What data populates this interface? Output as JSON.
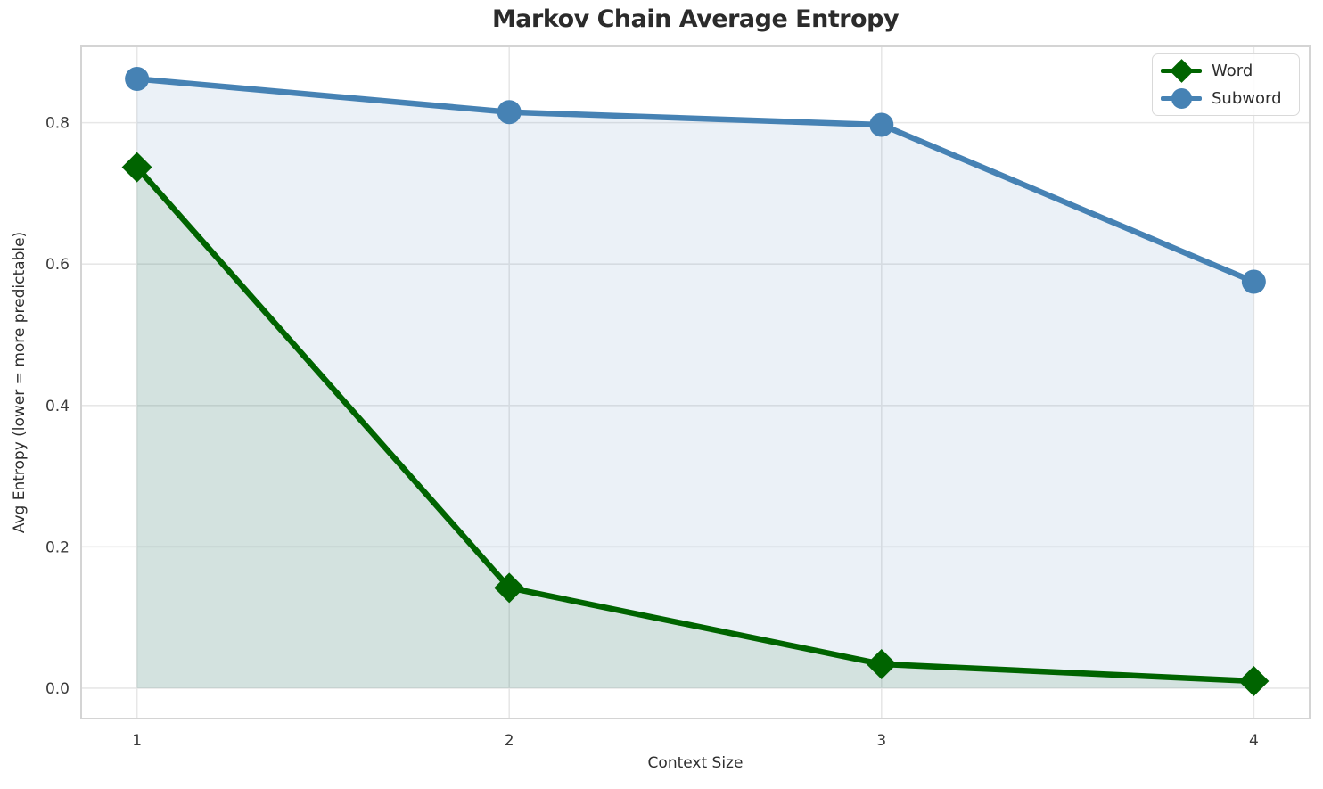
{
  "figure": {
    "background_color": "#ffffff"
  },
  "chart_data": {
    "type": "line",
    "title": "Markov Chain Average Entropy",
    "xlabel": "Context Size",
    "ylabel": "Avg Entropy (lower = more predictable)",
    "x": [
      1,
      2,
      3,
      4
    ],
    "series": [
      {
        "name": "Word",
        "color": "#006400",
        "marker": "diamond",
        "marker_size": 17,
        "line_width": 6.5,
        "fill_opacity": 0.1,
        "values": [
          0.737,
          0.142,
          0.034,
          0.01
        ]
      },
      {
        "name": "Subword",
        "color": "#4682b4",
        "marker": "circle",
        "marker_size": 13.5,
        "line_width": 6.5,
        "fill_opacity": 0.11,
        "values": [
          0.862,
          0.815,
          0.797,
          0.575
        ]
      }
    ],
    "area_baseline": 0,
    "xlim": [
      0.85,
      4.15
    ],
    "ylim": [
      -0.043,
      0.908
    ],
    "xticks": {
      "values": [
        1,
        2,
        3,
        4
      ],
      "labels": [
        "1",
        "2",
        "3",
        "4"
      ]
    },
    "yticks": {
      "values": [
        0,
        0.2,
        0.4,
        0.6,
        0.8
      ],
      "labels": [
        "0.0",
        "0.2",
        "0.4",
        "0.6",
        "0.8"
      ]
    },
    "grid": true,
    "grid_color": "#e7e7e7",
    "spine_color": "#d4d4d4",
    "tick_label_color": "#3a3a3a",
    "legend_position": "upper right"
  },
  "legend": {
    "items": [
      {
        "label": "Word",
        "marker": "diamond",
        "color": "#006400"
      },
      {
        "label": "Subword",
        "marker": "circle",
        "color": "#4682b4"
      }
    ]
  }
}
